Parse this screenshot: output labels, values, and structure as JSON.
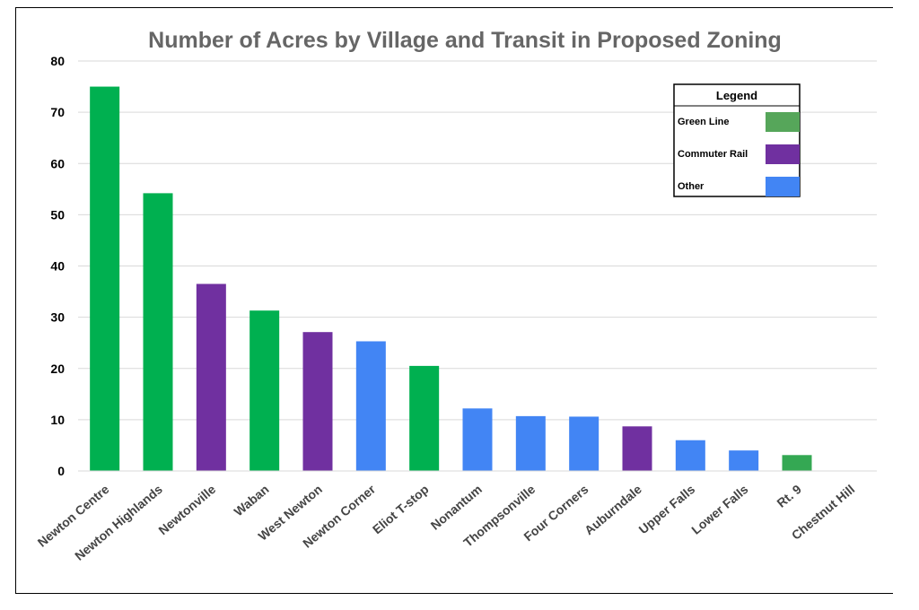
{
  "chart_data": {
    "type": "bar",
    "title": "Number of Acres by Village and Transit in Proposed Zoning",
    "xlabel": "",
    "ylabel": "",
    "ylim": [
      0,
      80
    ],
    "yticks": [
      0,
      10,
      20,
      30,
      40,
      50,
      60,
      70,
      80
    ],
    "grid": true,
    "categories": [
      "Newton Centre",
      "Newton Highlands",
      "Newtonville",
      "Waban",
      "West Newton",
      "Newton Corner",
      "Eliot T-stop",
      "Nonantum",
      "Thompsonville",
      "Four Corners",
      "Auburndale",
      "Upper Falls",
      "Lower Falls",
      "Rt. 9",
      "Chestnut Hill"
    ],
    "values": [
      75,
      54.2,
      36.5,
      31.3,
      27.1,
      25.3,
      20.5,
      12.2,
      10.7,
      10.6,
      8.7,
      6.0,
      4.0,
      3.1,
      0
    ],
    "transit": [
      "Green Line",
      "Green Line",
      "Commuter Rail",
      "Green Line",
      "Commuter Rail",
      "Other",
      "Green Line",
      "Other",
      "Other",
      "Other",
      "Commuter Rail",
      "Other",
      "Other",
      "Green Line",
      "Other"
    ],
    "bar_colors": [
      "#00b050",
      "#00b050",
      "#7030a0",
      "#00b050",
      "#7030a0",
      "#4285f4",
      "#00b050",
      "#4285f4",
      "#4285f4",
      "#4285f4",
      "#7030a0",
      "#4285f4",
      "#4285f4",
      "#34a853",
      "#4285f4"
    ],
    "legend": {
      "title": "Legend",
      "placement": "top-right",
      "entries": [
        {
          "label": "Green Line",
          "color": "#56a65a"
        },
        {
          "label": "Commuter Rail",
          "color": "#7030a0"
        },
        {
          "label": "Other",
          "color": "#4285f4"
        }
      ]
    }
  }
}
